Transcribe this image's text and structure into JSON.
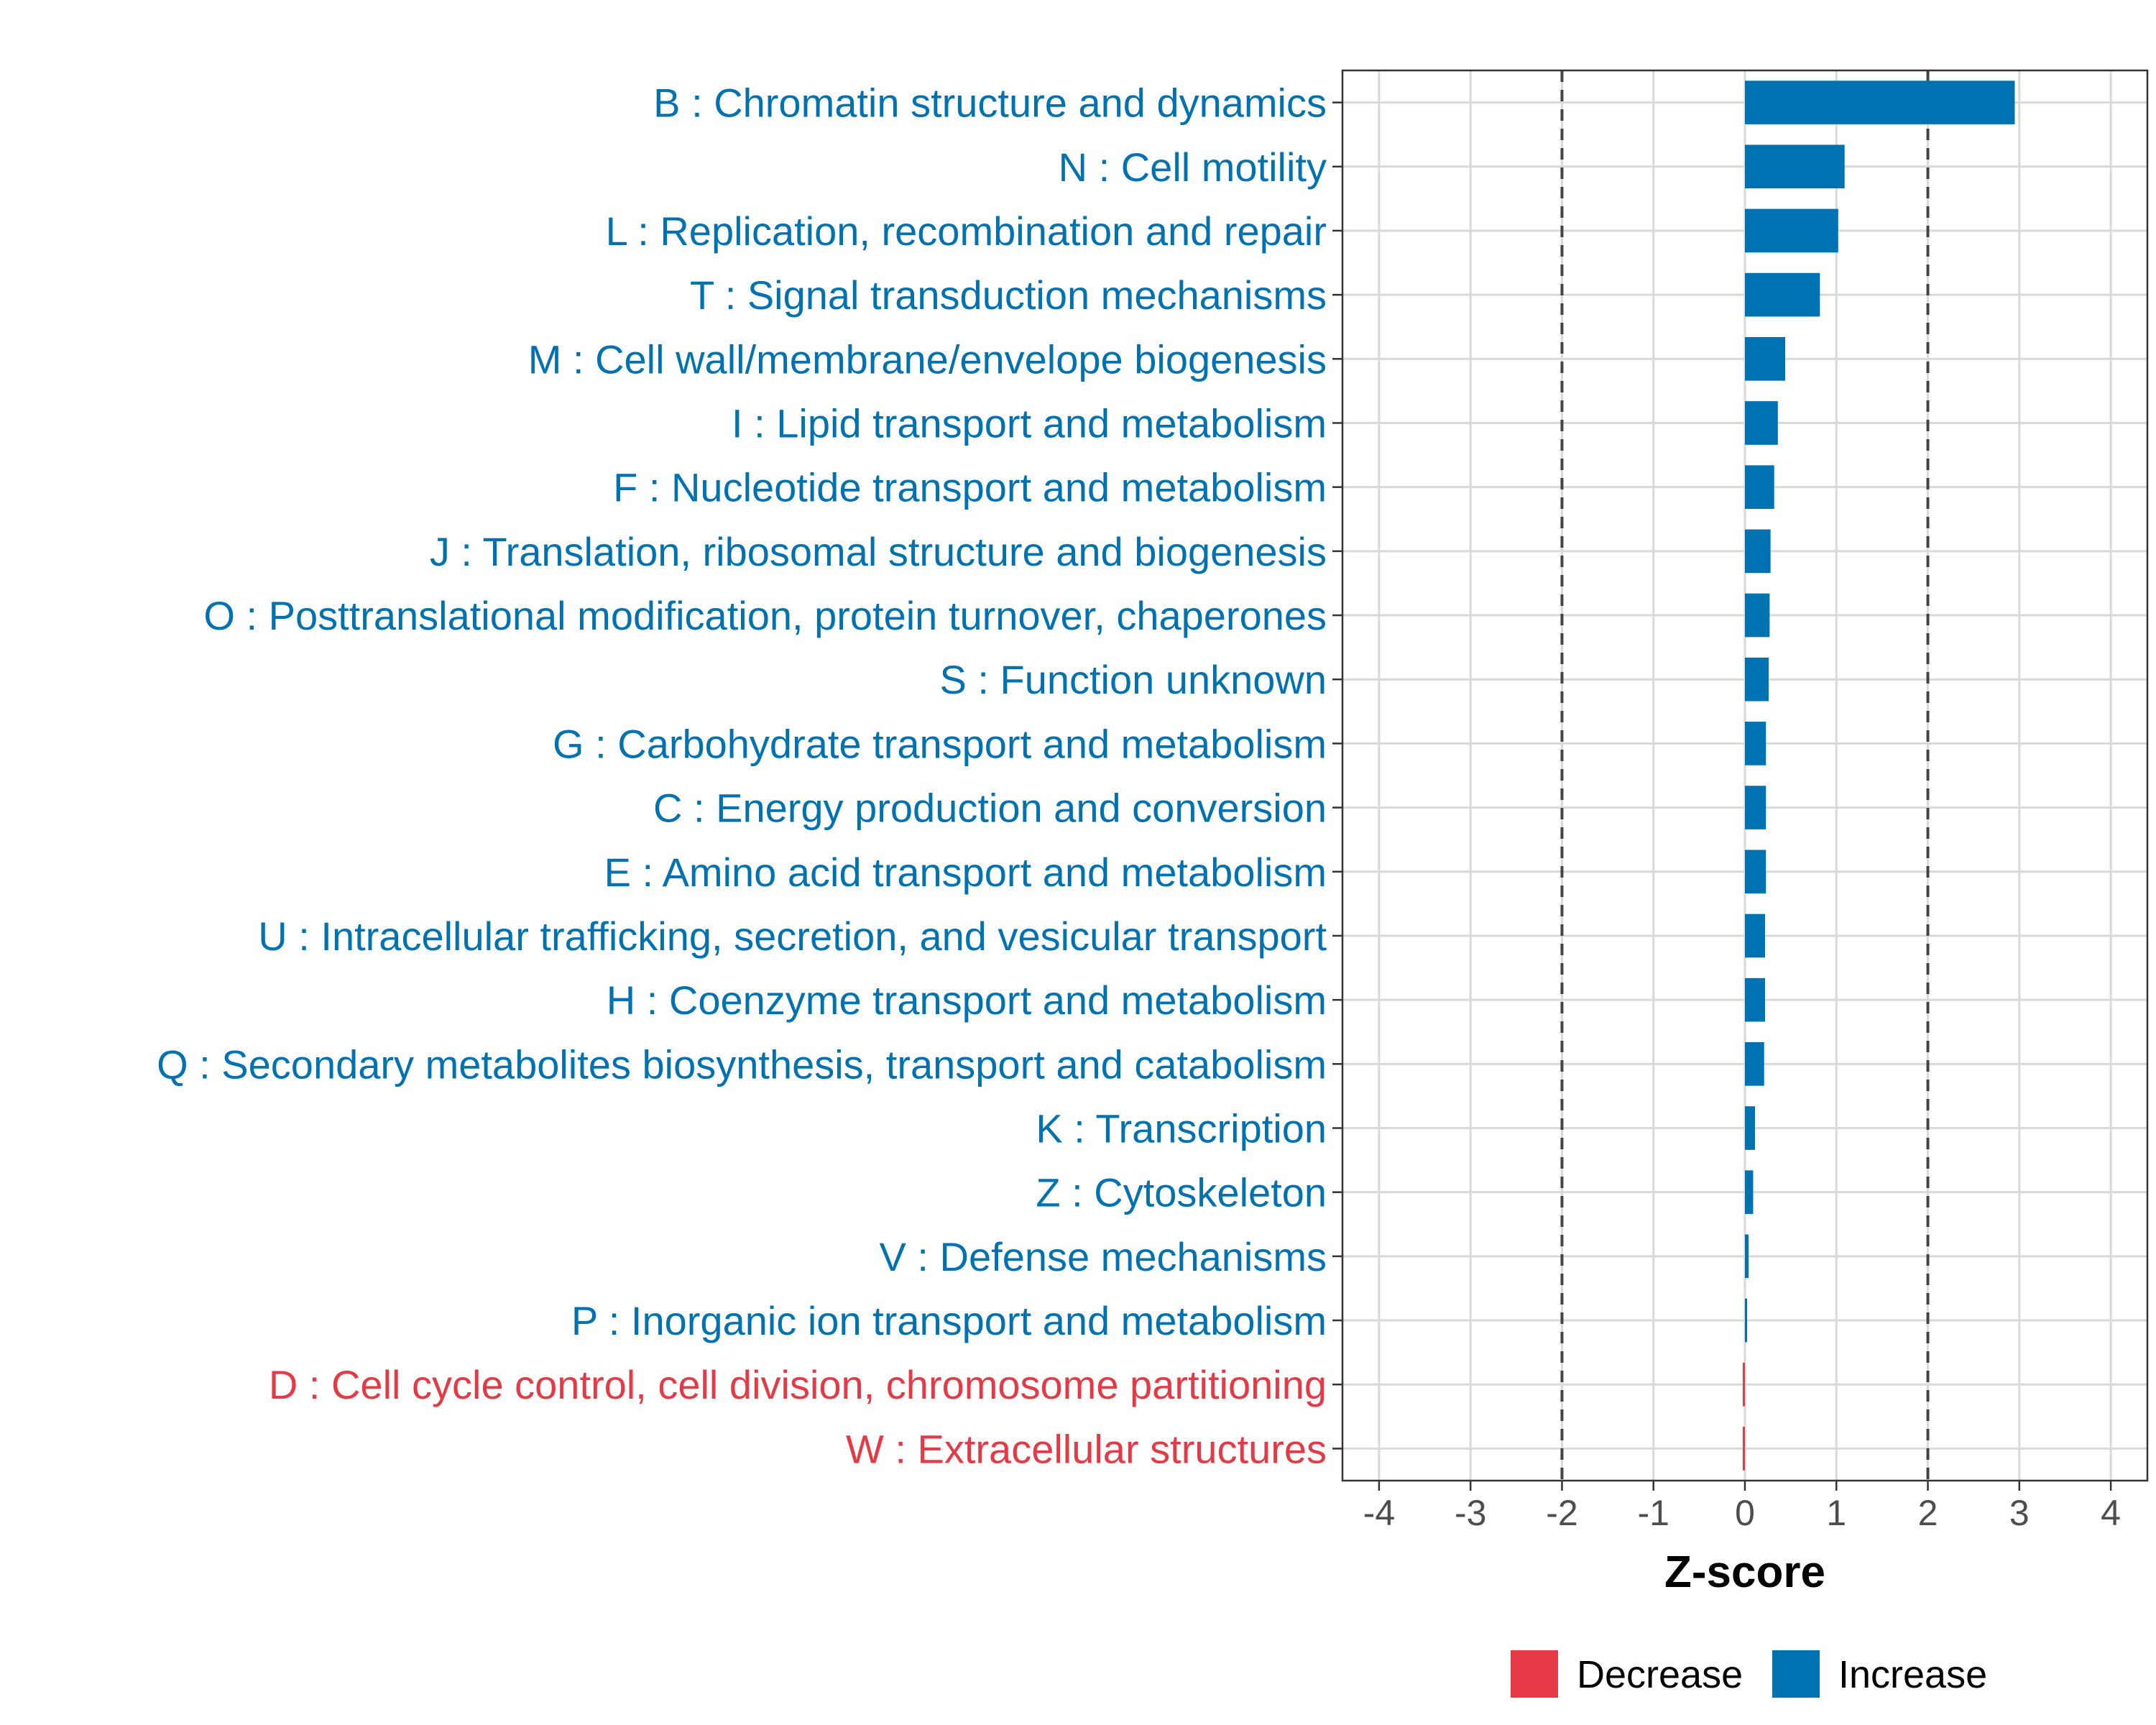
{
  "chart_data": {
    "type": "bar",
    "orientation": "horizontal",
    "xlabel": "Z-score",
    "ylabel": "",
    "xlim": [
      -4.4,
      4.4
    ],
    "xticks": [
      -4,
      -3,
      -2,
      -1,
      0,
      1,
      2,
      3,
      4
    ],
    "tick_labels": [
      "-4",
      "-3",
      "-2",
      "-1",
      "0",
      "1",
      "2",
      "3",
      "4"
    ],
    "reference_lines": [
      -2,
      2
    ],
    "grid": true,
    "legend_position": "bottom",
    "colors": {
      "Increase": "#0072b2",
      "Decrease": "#e63946"
    },
    "legend": [
      {
        "label": "Decrease",
        "color": "#e63946"
      },
      {
        "label": "Increase",
        "color": "#0072b2"
      }
    ],
    "categories": [
      "B : Chromatin structure and dynamics",
      "N : Cell motility",
      "L : Replication, recombination and repair",
      "T : Signal transduction mechanisms",
      "M : Cell wall/membrane/envelope biogenesis",
      "I : Lipid transport and metabolism",
      "F : Nucleotide transport and metabolism",
      "J : Translation, ribosomal structure and biogenesis",
      "O : Posttranslational modification, protein turnover, chaperones",
      "S : Function unknown",
      "G : Carbohydrate transport and metabolism",
      "C : Energy production and conversion",
      "E : Amino acid transport and metabolism",
      "U : Intracellular trafficking, secretion, and vesicular transport",
      "H : Coenzyme transport and metabolism",
      "Q : Secondary metabolites biosynthesis, transport and catabolism",
      "K : Transcription",
      "Z : Cytoskeleton",
      "V : Defense mechanisms",
      "P : Inorganic ion transport and metabolism",
      "D : Cell cycle control, cell division, chromosome partitioning",
      "W : Extracellular structures"
    ],
    "values": [
      2.95,
      1.09,
      1.02,
      0.82,
      0.44,
      0.36,
      0.32,
      0.28,
      0.27,
      0.26,
      0.23,
      0.23,
      0.23,
      0.22,
      0.22,
      0.21,
      0.11,
      0.09,
      0.04,
      0.01,
      -0.01,
      -0.01
    ],
    "groups": [
      "Increase",
      "Increase",
      "Increase",
      "Increase",
      "Increase",
      "Increase",
      "Increase",
      "Increase",
      "Increase",
      "Increase",
      "Increase",
      "Increase",
      "Increase",
      "Increase",
      "Increase",
      "Increase",
      "Increase",
      "Increase",
      "Increase",
      "Increase",
      "Decrease",
      "Decrease"
    ]
  }
}
